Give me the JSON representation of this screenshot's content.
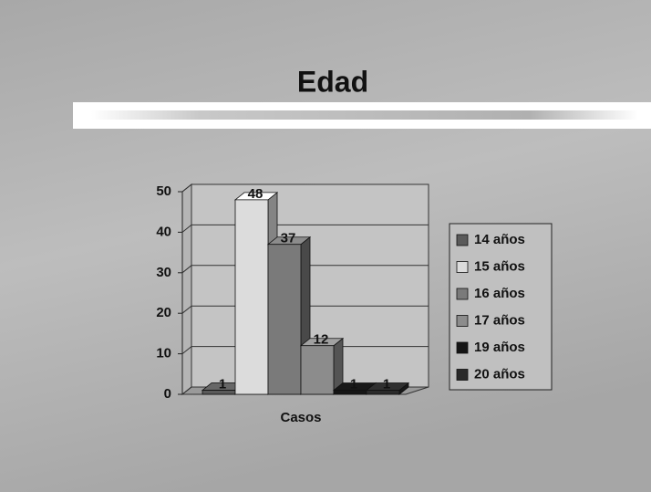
{
  "chart_data": {
    "type": "bar3d",
    "title": "Edad",
    "categories": [
      "Casos"
    ],
    "series": [
      {
        "name": "14 años",
        "color": "#5a5a5a",
        "values": [
          1
        ]
      },
      {
        "name": "15 años",
        "color": "#dcdcdc",
        "values": [
          48
        ]
      },
      {
        "name": "16 años",
        "color": "#7a7a7a",
        "values": [
          37
        ]
      },
      {
        "name": "17 años",
        "color": "#8c8c8c",
        "values": [
          12
        ]
      },
      {
        "name": "19 años",
        "color": "#151515",
        "values": [
          1
        ]
      },
      {
        "name": "20 años",
        "color": "#2a2a2a",
        "values": [
          1
        ]
      }
    ],
    "ylim": [
      0,
      50
    ],
    "yticks": [
      0,
      10,
      20,
      30,
      40,
      50
    ],
    "grid": true,
    "legend": "right"
  }
}
